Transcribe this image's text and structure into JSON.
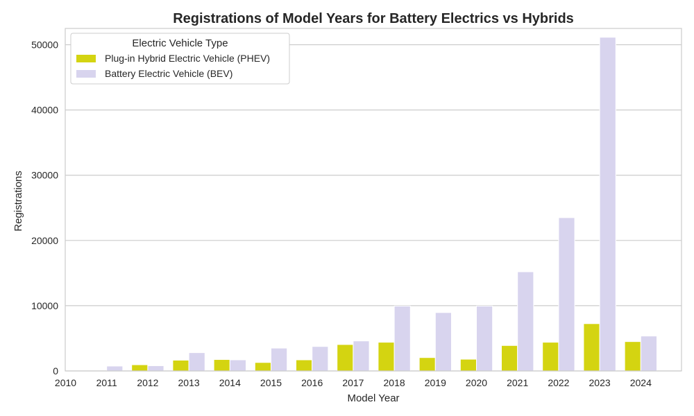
{
  "chart_data": {
    "type": "bar",
    "title": "Registrations of Model Years for Battery Electrics vs Hybrids",
    "xlabel": "Model Year",
    "ylabel": "Registrations",
    "categories": [
      "2010",
      "2011",
      "2012",
      "2013",
      "2014",
      "2015",
      "2016",
      "2017",
      "2018",
      "2019",
      "2020",
      "2021",
      "2022",
      "2023",
      "2024"
    ],
    "series": [
      {
        "name": "Plug-in Hybrid Electric Vehicle (PHEV)",
        "color": "#d4d411",
        "values": [
          0,
          0,
          950,
          1650,
          1750,
          1300,
          1700,
          4050,
          4400,
          2050,
          1800,
          3900,
          4400,
          7250,
          4500
        ]
      },
      {
        "name": "Battery Electric Vehicle (BEV)",
        "color": "#d8d4ee",
        "values": [
          0,
          750,
          800,
          2800,
          1700,
          3500,
          3750,
          4600,
          9950,
          8950,
          9950,
          15200,
          23500,
          51150,
          5350
        ]
      }
    ],
    "ylim": [
      0,
      52500
    ],
    "yticks": [
      0,
      10000,
      20000,
      30000,
      40000,
      50000
    ],
    "grid": true,
    "legend": {
      "title": "Electric Vehicle Type",
      "placement": "upper-left"
    }
  }
}
